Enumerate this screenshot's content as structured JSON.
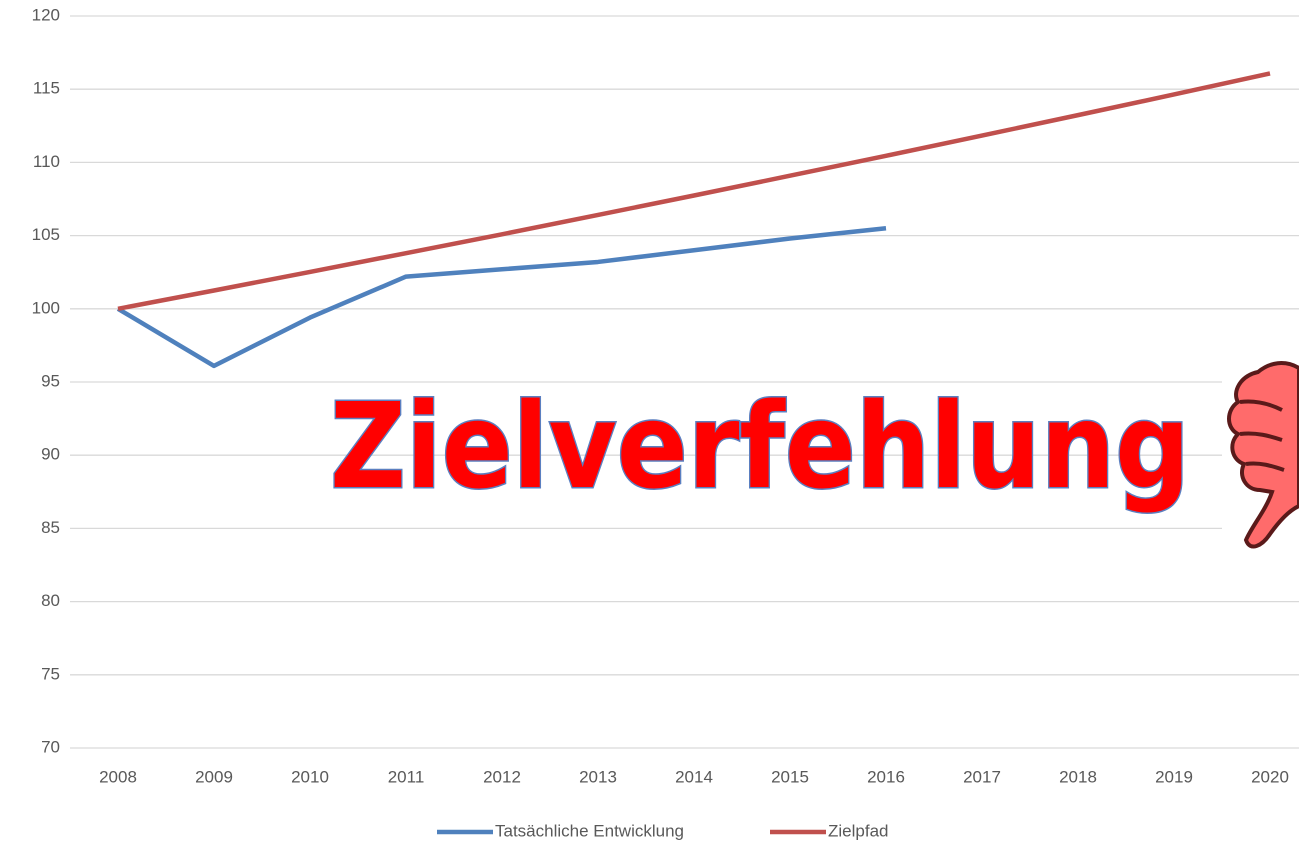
{
  "chart_data": {
    "type": "line",
    "categories": [
      "2008",
      "2009",
      "2010",
      "2011",
      "2012",
      "2013",
      "2014",
      "2015",
      "2016",
      "2017",
      "2018",
      "2019",
      "2020"
    ],
    "series": [
      {
        "name": "Tatsächliche Entwicklung",
        "color": "#4f81bd",
        "values": [
          100,
          96.1,
          99.4,
          102.2,
          102.7,
          103.2,
          104.0,
          104.8,
          105.5,
          null,
          null,
          null,
          null
        ]
      },
      {
        "name": "Zielpfad",
        "color": "#c0504d",
        "values": [
          100,
          101.25,
          102.52,
          103.8,
          105.09,
          106.41,
          107.74,
          109.09,
          110.45,
          111.83,
          113.23,
          114.64,
          116.08
        ]
      }
    ],
    "ylim": [
      70,
      120
    ],
    "yticks": [
      70,
      75,
      80,
      85,
      90,
      95,
      100,
      105,
      110,
      115,
      120
    ],
    "grid": true,
    "annotation": "Zielverfehlung",
    "legend": "bottom"
  }
}
